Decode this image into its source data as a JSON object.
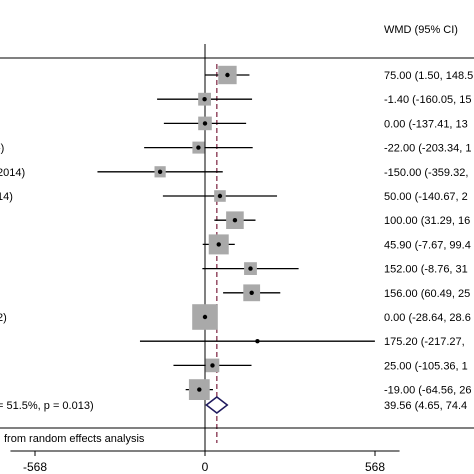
{
  "chart_data": {
    "type": "forest",
    "column_header": "WMD (95% CI)",
    "x_ticks": [
      -568,
      0,
      568
    ],
    "xlim": [
      -760,
      760
    ],
    "null_line": 0,
    "pooled_line": 39.56,
    "study_left_fragments": [
      "",
      "",
      "",
      "",
      "-)",
      "2014)",
      "14)",
      "",
      "",
      "",
      "",
      "2)",
      "",
      "",
      ""
    ],
    "studies": [
      {
        "effect": 75.0,
        "lo": 1.5,
        "hi": 148.5,
        "weight": 1.3,
        "ci_text": "75.00 (1.50, 148.5"
      },
      {
        "effect": -1.4,
        "lo": -160.05,
        "hi": 157.25,
        "weight": 0.6,
        "ci_text": "-1.40 (-160.05, 15"
      },
      {
        "effect": 0.0,
        "lo": -137.41,
        "hi": 137.41,
        "weight": 0.7,
        "ci_text": "0.00 (-137.41, 13"
      },
      {
        "effect": -22.0,
        "lo": -203.34,
        "hi": 159.34,
        "weight": 0.5,
        "ci_text": "-22.00 (-203.34, 1"
      },
      {
        "effect": -150.0,
        "lo": -359.32,
        "hi": 59.32,
        "weight": 0.4,
        "ci_text": "-150.00 (-359.32,"
      },
      {
        "effect": 50.0,
        "lo": -140.67,
        "hi": 240.67,
        "weight": 0.45,
        "ci_text": "50.00 (-140.67, 2"
      },
      {
        "effect": 100.0,
        "lo": 31.29,
        "hi": 168.71,
        "weight": 1.2,
        "ci_text": "100.00 (31.29, 16"
      },
      {
        "effect": 45.9,
        "lo": -7.67,
        "hi": 99.47,
        "weight": 1.5,
        "ci_text": "45.90 (-7.67, 99.4"
      },
      {
        "effect": 152.0,
        "lo": -8.76,
        "hi": 312.76,
        "weight": 0.6,
        "ci_text": "152.00 (-8.76, 31"
      },
      {
        "effect": 156.0,
        "lo": 60.49,
        "hi": 251.51,
        "weight": 1.1,
        "ci_text": "156.00 (60.49, 25"
      },
      {
        "effect": 0.0,
        "lo": -28.64,
        "hi": 28.64,
        "weight": 2.2,
        "ci_text": "0.00 (-28.64, 28.6"
      },
      {
        "effect": 175.2,
        "lo": -217.27,
        "hi": 567.67,
        "weight": 0.0,
        "ci_text": "175.20 (-217.27,"
      },
      {
        "effect": 25.0,
        "lo": -105.36,
        "hi": 155.36,
        "weight": 0.7,
        "ci_text": "25.00 (-105.36, 1"
      },
      {
        "effect": -19.0,
        "lo": -64.56,
        "hi": 26.56,
        "weight": 1.6,
        "ci_text": "-19.00 (-64.56, 26"
      }
    ],
    "overall": {
      "left_fragment": "= 51.5%, p = 0.013)",
      "effect": 39.56,
      "lo": 4.65,
      "hi": 74.47,
      "ci_text": "39.56 (4.65, 74.4"
    },
    "footnote": "from random effects analysis",
    "colors": {
      "box": "#a9a9a9",
      "line": "#000000",
      "diamond": "#1f1a5e",
      "pooled_line": "#7a1f3d",
      "null_line": "#000000"
    }
  }
}
